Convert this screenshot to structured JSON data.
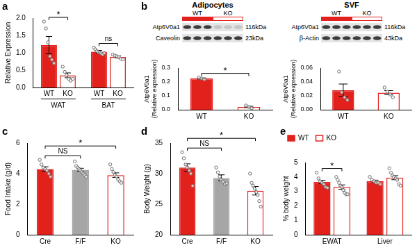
{
  "chart_data": [
    {
      "panel": "a",
      "type": "bar",
      "y_label": "Relative Expression",
      "categories": [
        "WAT",
        "BAT"
      ],
      "color": "#e3211c",
      "series": [
        {
          "name": "WT",
          "color": "#e3211c",
          "values": [
            1.22,
            1.03
          ],
          "errors": [
            0.25,
            0.04
          ],
          "points": [
            [
              1.9,
              1.7,
              1.3,
              0.9,
              0.8,
              0.7
            ],
            [
              1.15,
              1.1,
              1.05,
              1.02,
              1.0,
              0.98,
              0.95,
              0.99
            ]
          ]
        },
        {
          "name": "KO",
          "color": "#ffffff",
          "values": [
            0.35,
            0.88
          ],
          "errors": [
            0.07,
            0.03
          ],
          "points": [
            [
              0.6,
              0.45,
              0.35,
              0.25,
              0.2,
              0.25
            ],
            [
              0.95,
              0.92,
              0.9,
              0.87,
              0.83,
              0.81
            ]
          ]
        }
      ],
      "ylim": [
        0,
        2
      ],
      "yticks": [
        {
          "value": 0,
          "label": "0.0"
        },
        0.5,
        {
          "value": 1,
          "label": "1.0"
        },
        1.5,
        {
          "value": 2,
          "label": "2.0"
        }
      ],
      "grid": false,
      "annotations": [
        {
          "text": "*",
          "category": "WAT"
        },
        {
          "text": "ns",
          "category": "BAT"
        }
      ]
    },
    {
      "type": "bar",
      "y_label": [
        "Atp6V0a1",
        "(Relative expression)"
      ],
      "categories": [
        "WT",
        "KO"
      ],
      "color": "#e3211c",
      "colors": [
        "#e3211c",
        "#ffffff"
      ],
      "values": [
        0.225,
        0.02
      ],
      "errors": [
        0.004,
        0.005
      ],
      "points": [
        [
          0.232,
          0.225,
          0.218
        ],
        [
          0.03,
          0.02,
          0.012
        ]
      ],
      "ylim": [
        0,
        0.3
      ],
      "yticks": [
        {
          "value": 0,
          "label": "0.0"
        },
        0.1,
        0.2,
        0.3
      ],
      "grid": false,
      "annotations": [
        {
          "text": "*",
          "pair": [
            "WT",
            "KO"
          ]
        }
      ]
    },
    {
      "type": "bar",
      "y_label": [
        "Atp6V0a1",
        "(Relative expression)"
      ],
      "categories": [
        "WT",
        "KO"
      ],
      "color": "#e3211c",
      "colors": [
        "#e3211c",
        "#ffffff"
      ],
      "values": [
        0.028,
        0.0245
      ],
      "errors": [
        0.009,
        0.003
      ],
      "points": [
        [
          0.055,
          0.025,
          0.018,
          0.014
        ],
        [
          0.032,
          0.026,
          0.022,
          0.018
        ]
      ],
      "ylim": [
        0,
        0.06
      ],
      "yticks": [
        {
          "value": 0,
          "label": "0.00"
        },
        0.02,
        0.04,
        0.06
      ],
      "grid": false,
      "annotations": []
    },
    {
      "panel": "c",
      "type": "bar",
      "y_label": "Food Intake (g/d)",
      "categories": [
        "Cre",
        "F/F",
        "KO"
      ],
      "color": "#e3211c",
      "colors": [
        "#e3211c",
        "#a6a6a6",
        "#ffffff"
      ],
      "values": [
        4.3,
        4.25,
        3.9
      ],
      "errors": [
        0.15,
        0.1,
        0.15
      ],
      "points": [
        [
          4.9,
          4.6,
          4.4,
          4.3,
          4.2,
          4.0,
          3.8
        ],
        [
          4.8,
          4.5,
          4.4,
          4.3,
          4.2,
          4.1,
          4.0,
          3.9,
          3.8
        ],
        [
          4.6,
          4.3,
          4.1,
          3.9,
          3.8,
          3.6,
          3.5,
          3.4
        ]
      ],
      "ylim": [
        0,
        6
      ],
      "yticks": [
        0,
        2,
        4,
        6
      ],
      "grid": false,
      "annotations": [
        {
          "text": "NS",
          "pair": [
            "Cre",
            "F/F"
          ]
        },
        {
          "text": "*",
          "pair": [
            "Cre",
            "KO"
          ]
        }
      ]
    },
    {
      "panel": "d",
      "type": "bar",
      "y_label": "Body Weight (g)",
      "categories": [
        "Cre",
        "F/F",
        "KO"
      ],
      "color": "#e3211c",
      "colors": [
        "#e3211c",
        "#a6a6a6",
        "#ffffff"
      ],
      "values": [
        31,
        29.3,
        27.2
      ],
      "errors": [
        0.6,
        0.5,
        0.7
      ],
      "points": [
        [
          33.5,
          32.5,
          31.5,
          31,
          30.5,
          30,
          28
        ],
        [
          31,
          30.2,
          29.5,
          29,
          28.7,
          28.3,
          28.4
        ],
        [
          30,
          28.5,
          28,
          27.5,
          27,
          26.5,
          25.5,
          24.6
        ]
      ],
      "ylim": [
        20,
        35
      ],
      "yticks": [
        20,
        25,
        30,
        35
      ],
      "grid": false,
      "annotations": [
        {
          "text": "NS",
          "pair": [
            "Cre",
            "F/F"
          ]
        },
        {
          "text": "*",
          "pair": [
            "Cre",
            "KO"
          ]
        }
      ]
    },
    {
      "panel": "e",
      "type": "bar",
      "y_label": "% body weight",
      "categories": [
        "EWAT",
        "Liver"
      ],
      "color": "#e3211c",
      "series": [
        {
          "name": "WT",
          "color": "#e3211c",
          "values": [
            3.65,
            3.7
          ],
          "errors": [
            0.12,
            0.08
          ],
          "points": [
            [
              4.3,
              3.9,
              3.7,
              3.6,
              3.5,
              3.3,
              3.25
            ],
            [
              4.0,
              3.8,
              3.7,
              3.6,
              3.6,
              3.5
            ]
          ]
        },
        {
          "name": "KO",
          "color": "#ffffff",
          "values": [
            3.3,
            3.95
          ],
          "errors": [
            0.15,
            0.14
          ],
          "points": [
            [
              4.0,
              3.8,
              3.6,
              3.4,
              3.3,
              3.1,
              2.9,
              2.8,
              2.8
            ],
            [
              4.6,
              4.3,
              4.1,
              4.0,
              3.9,
              3.8,
              3.5,
              3.4
            ]
          ]
        }
      ],
      "ylim": [
        0,
        5
      ],
      "yticks": [
        0,
        1,
        2,
        3,
        4,
        5
      ],
      "legend": "top left",
      "grid": false,
      "annotations": [
        {
          "text": "*",
          "category": "EWAT"
        }
      ]
    }
  ],
  "blots": [
    {
      "panel": "b",
      "title": "Adipocytes",
      "groups": [
        "WT",
        "KO"
      ],
      "rows": [
        {
          "label": "Atp6V0a1",
          "size": "116kDa"
        },
        {
          "label": "Caveolin",
          "size": "23kDa"
        }
      ]
    },
    {
      "title": "SVF",
      "groups": [
        "WT",
        "KO"
      ],
      "rows": [
        {
          "label": "Atp6V0a1",
          "size": "116kDa"
        },
        {
          "label": "β-Actin",
          "size": "43kDa"
        }
      ]
    }
  ]
}
